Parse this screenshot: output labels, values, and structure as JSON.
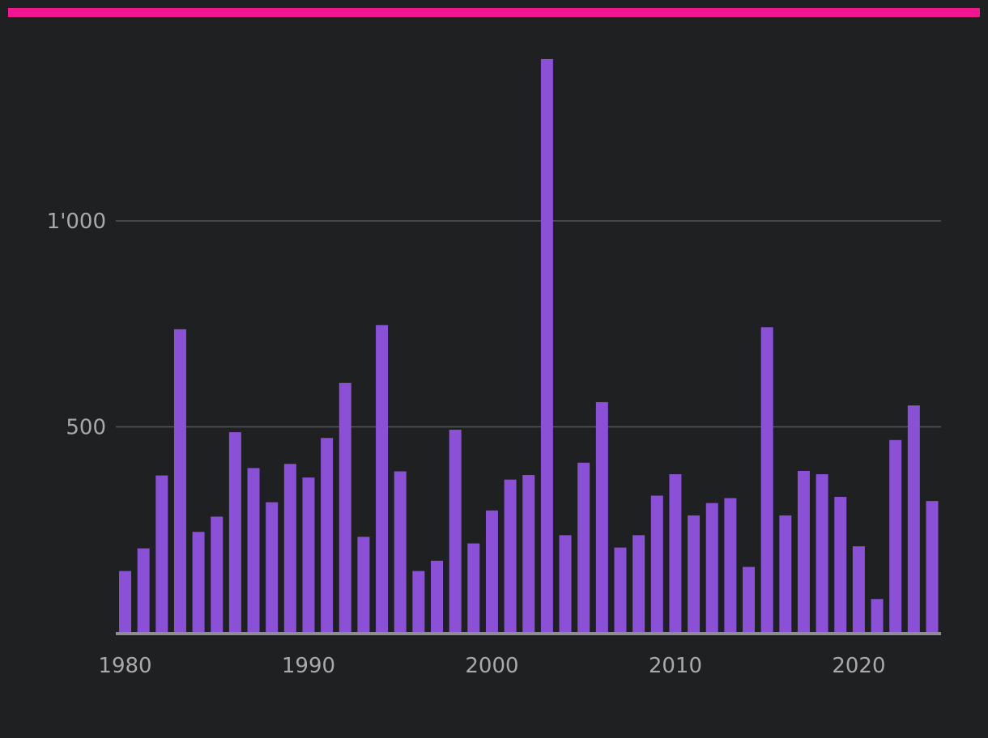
{
  "colors": {
    "accent": "#f0168f",
    "bar": "#8a50d6",
    "background": "#1f2022",
    "text": "#a9a9ab",
    "grid": "#55565a"
  },
  "chart_data": {
    "type": "bar",
    "title": "",
    "xlabel": "",
    "ylabel": "",
    "grid": true,
    "legend": "none",
    "xlim": [
      1980,
      2024
    ],
    "ylim": [
      0,
      1400
    ],
    "x_ticks": [
      1980,
      1990,
      2000,
      2010,
      2020
    ],
    "x_tick_labels": [
      "1980",
      "1990",
      "2000",
      "2010",
      "2020"
    ],
    "y_ticks": [
      500,
      1000
    ],
    "y_tick_labels": [
      "500",
      "1'000"
    ],
    "categories": [
      1980,
      1981,
      1982,
      1983,
      1984,
      1985,
      1986,
      1987,
      1988,
      1989,
      1990,
      1991,
      1992,
      1993,
      1994,
      1995,
      1996,
      1997,
      1998,
      1999,
      2000,
      2001,
      2002,
      2003,
      2004,
      2005,
      2006,
      2007,
      2008,
      2009,
      2010,
      2011,
      2012,
      2013,
      2014,
      2015,
      2016,
      2017,
      2018,
      2019,
      2020,
      2021,
      2022,
      2023,
      2024
    ],
    "values": [
      150,
      205,
      382,
      737,
      245,
      282,
      487,
      400,
      317,
      410,
      377,
      473,
      607,
      233,
      747,
      392,
      150,
      175,
      493,
      217,
      297,
      372,
      383,
      1393,
      237,
      413,
      560,
      207,
      237,
      333,
      385,
      285,
      315,
      327,
      160,
      742,
      285,
      393,
      385,
      330,
      210,
      82,
      468,
      552,
      320
    ]
  }
}
